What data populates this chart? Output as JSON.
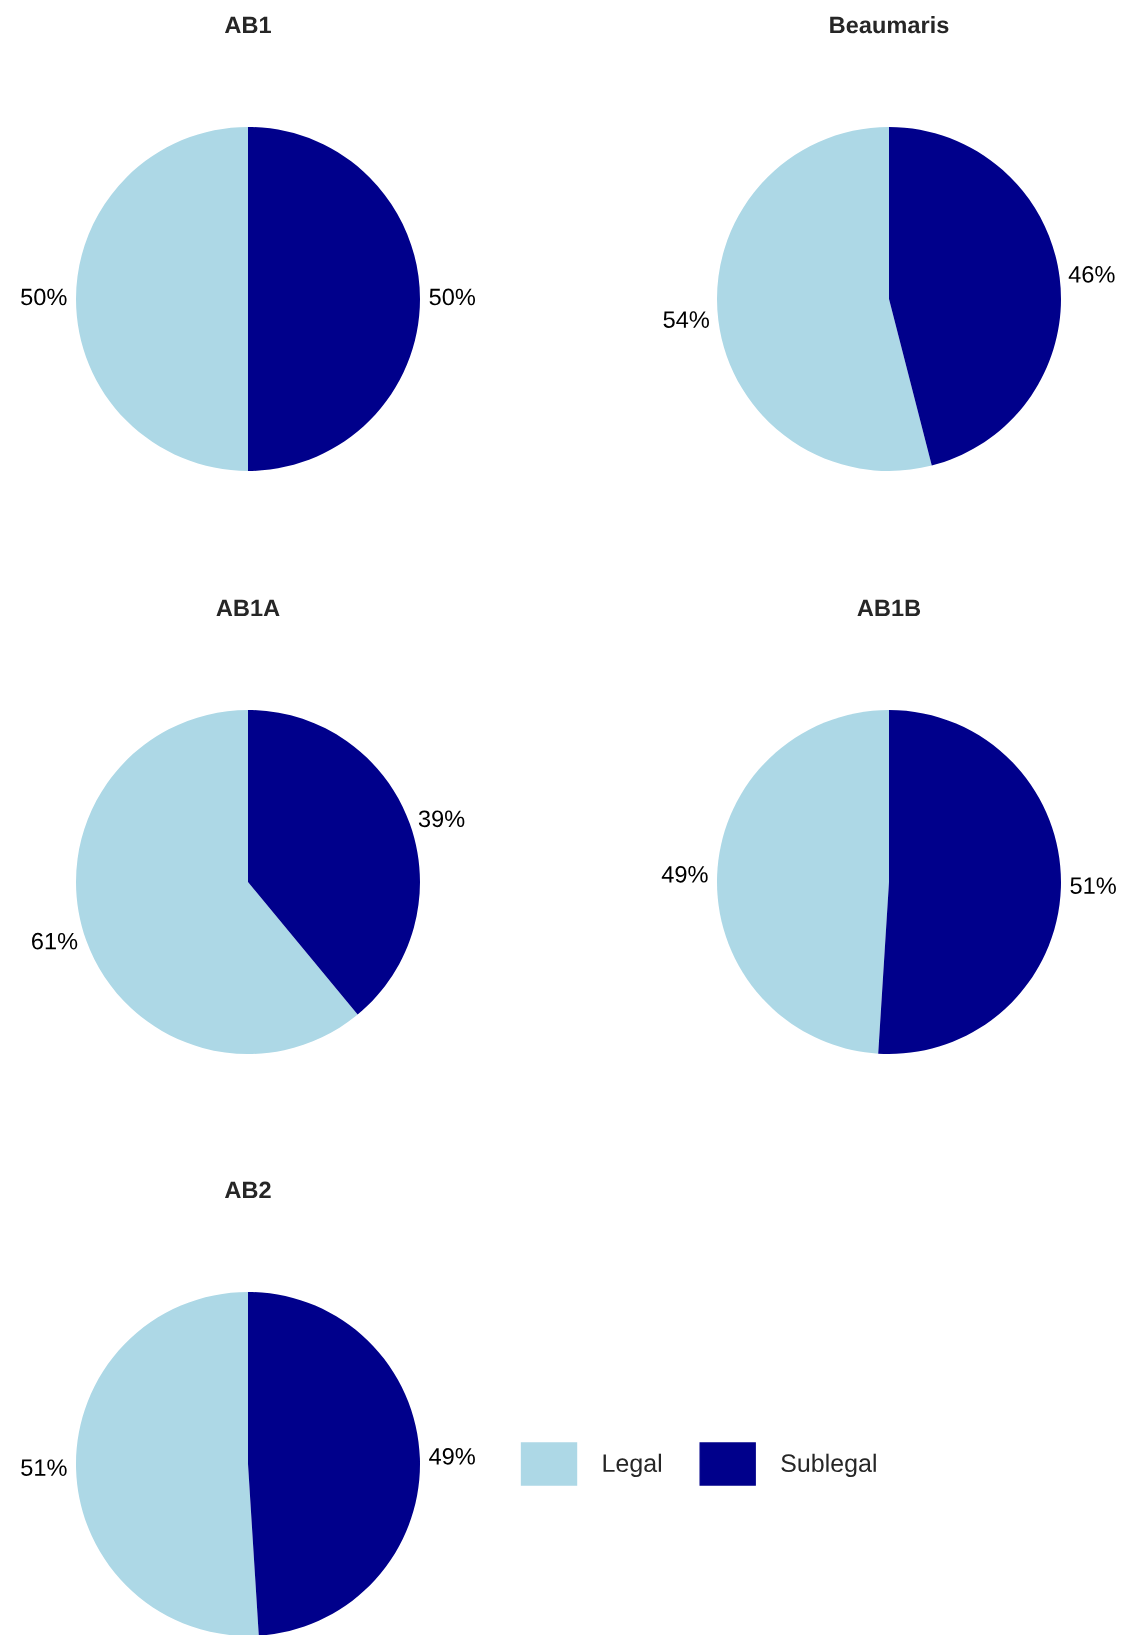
{
  "chart_data": [
    {
      "type": "pie",
      "title": "AB1",
      "categories": [
        null,
        null
      ],
      "values": [
        50,
        50
      ],
      "colors": [
        "#add8e6",
        "#00008b"
      ],
      "value_labels": [
        "50%",
        "50%"
      ]
    },
    {
      "type": "pie",
      "title": "Beaumaris",
      "categories": [
        null,
        null
      ],
      "values": [
        54,
        46
      ],
      "colors": [
        "#add8e6",
        "#00008b"
      ],
      "value_labels": [
        "54%",
        "46%"
      ]
    },
    {
      "type": "pie",
      "title": "AB1A",
      "categories": [
        null,
        null
      ],
      "values": [
        61,
        39
      ],
      "colors": [
        "#add8e6",
        "#00008b"
      ],
      "value_labels": [
        "61%",
        "39%"
      ]
    },
    {
      "type": "pie",
      "title": "AB1B",
      "categories": [
        null,
        null
      ],
      "values": [
        49,
        51
      ],
      "colors": [
        "#add8e6",
        "#00008b"
      ],
      "value_labels": [
        "49%",
        "51%"
      ]
    },
    {
      "type": "pie",
      "title": "AB2",
      "categories": [
        "Legal",
        "Sublegal"
      ],
      "values": [
        51,
        49
      ],
      "colors": [
        "#add8e6",
        "#00008b"
      ],
      "value_labels": [
        "51%",
        "49%"
      ],
      "legend": "right"
    }
  ]
}
